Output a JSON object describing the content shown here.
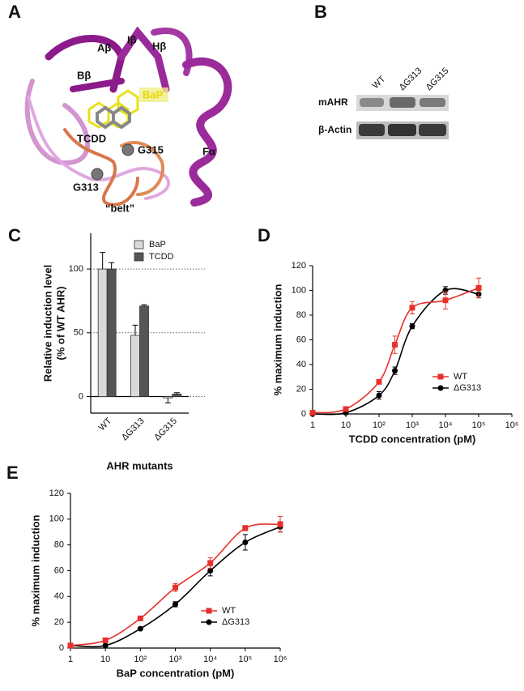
{
  "structure": {
    "panel": "A",
    "labels": [
      "Aβ",
      "Iβ",
      "Hβ",
      "Bβ",
      "BaP",
      "TCDD",
      "G315",
      "G313",
      "Fα",
      "“belt”"
    ]
  },
  "blot": {
    "panel": "B",
    "lanes": [
      "WT",
      "ΔG313",
      "ΔG315"
    ],
    "rows": [
      "mAHR",
      "β-Actin"
    ]
  },
  "chart_data": [
    {
      "type": "bar",
      "panel": "C",
      "ylabel": [
        "Relative induction level",
        "(% of WT AHR)"
      ],
      "xlabel": "AHR mutants",
      "categories": [
        "WT",
        "ΔG313",
        "ΔG315"
      ],
      "series": [
        {
          "name": "BaP",
          "color": "#d9d9d9",
          "values": [
            100,
            48,
            -1
          ],
          "errors": [
            13,
            8,
            4
          ]
        },
        {
          "name": "TCDD",
          "color": "#555555",
          "values": [
            100,
            71,
            2
          ],
          "errors": [
            5,
            1,
            1
          ]
        }
      ],
      "ylim": [
        -13,
        128
      ],
      "yticks": [
        0,
        50,
        100
      ],
      "grid": true,
      "legend": "upper right"
    },
    {
      "type": "line",
      "panel": "D",
      "xlabel": "TCDD concentration (pM)",
      "ylabel": "% maximum induction",
      "xscale": "log",
      "x": [
        1,
        10,
        100,
        300,
        1000,
        10000,
        100000
      ],
      "series": [
        {
          "name": "WT",
          "color": "#e8302a",
          "marker": "square",
          "values": [
            1,
            4,
            26,
            56,
            86,
            92,
            102
          ],
          "errors": [
            1,
            1,
            1,
            7,
            5,
            7,
            8
          ]
        },
        {
          "name": "ΔG313",
          "color": "#000000",
          "marker": "circle",
          "values": [
            0,
            1,
            15,
            35,
            71,
            100,
            97
          ],
          "errors": [
            1,
            1,
            3,
            3,
            2,
            3,
            3
          ]
        }
      ],
      "xlim": [
        1,
        1000000
      ],
      "xticks": [
        1,
        10,
        {
          "value": 100,
          "label": "10²"
        },
        {
          "value": 1000,
          "label": "10³"
        },
        {
          "value": 10000,
          "label": "10⁴"
        },
        {
          "value": 100000,
          "label": "10⁵"
        },
        {
          "value": 1000000,
          "label": "10⁶"
        }
      ],
      "ylim": [
        0,
        120
      ],
      "yticks": [
        0,
        20,
        40,
        60,
        80,
        100,
        120
      ],
      "legend": "lower right"
    },
    {
      "type": "line",
      "panel": "E",
      "xlabel": "BaP concentration (pM)",
      "ylabel": "% maximum induction",
      "xscale": "log",
      "x": [
        1,
        10,
        100,
        1000,
        10000,
        100000,
        1000000
      ],
      "series": [
        {
          "name": "WT",
          "color": "#e8302a",
          "marker": "square",
          "values": [
            2,
            6,
            23,
            47,
            66,
            93,
            96
          ],
          "errors": [
            1,
            1,
            1,
            3,
            4,
            2,
            6
          ]
        },
        {
          "name": "ΔG313",
          "color": "#000000",
          "marker": "circle",
          "values": [
            2,
            2,
            15,
            34,
            60,
            82,
            94
          ],
          "errors": [
            1,
            1,
            1,
            2,
            4,
            6,
            4
          ]
        }
      ],
      "xlim": [
        1,
        1000000
      ],
      "xticks": [
        1,
        10,
        {
          "value": 100,
          "label": "10²"
        },
        {
          "value": 1000,
          "label": "10³"
        },
        {
          "value": 10000,
          "label": "10⁴"
        },
        {
          "value": 100000,
          "label": "10⁵"
        },
        {
          "value": 1000000,
          "label": "10⁶"
        }
      ],
      "ylim": [
        0,
        120
      ],
      "yticks": [
        0,
        20,
        40,
        60,
        80,
        100,
        120
      ],
      "legend": "lower right"
    }
  ]
}
